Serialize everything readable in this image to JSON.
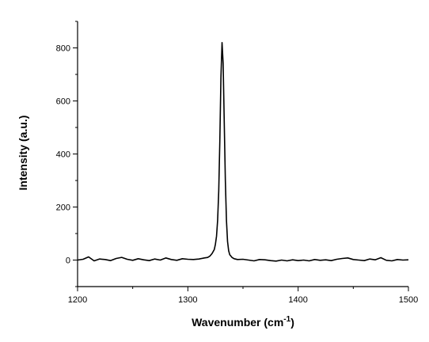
{
  "chart_data": {
    "type": "line",
    "title": "",
    "xlabel": "Wavenumber (cm",
    "xlabel_sup": "-1",
    "xlabel_suffix": ")",
    "ylabel": "Intensity (a.u.)",
    "xlim": [
      1200,
      1500
    ],
    "ylim": [
      -100,
      900
    ],
    "x_ticks": [
      1200,
      1300,
      1400,
      1500
    ],
    "y_ticks": [
      0,
      200,
      400,
      600,
      800
    ],
    "grid": false,
    "legend": "none",
    "color": "#000000",
    "series": [
      {
        "x": [
          1200,
          1205,
          1210,
          1215,
          1220,
          1225,
          1230,
          1235,
          1240,
          1245,
          1250,
          1255,
          1260,
          1265,
          1270,
          1275,
          1280,
          1285,
          1290,
          1295,
          1300,
          1305,
          1310,
          1315,
          1318,
          1320,
          1322,
          1324,
          1325,
          1326,
          1327,
          1328,
          1329,
          1330,
          1331,
          1332,
          1333,
          1334,
          1335,
          1336,
          1337,
          1338,
          1340,
          1342,
          1345,
          1350,
          1355,
          1360,
          1365,
          1370,
          1375,
          1380,
          1385,
          1390,
          1395,
          1400,
          1405,
          1410,
          1415,
          1420,
          1425,
          1430,
          1435,
          1440,
          1445,
          1450,
          1455,
          1460,
          1465,
          1470,
          1475,
          1480,
          1485,
          1490,
          1495,
          1500
        ],
        "y": [
          0,
          3,
          12,
          -3,
          4,
          2,
          -2,
          6,
          10,
          3,
          -1,
          5,
          1,
          -2,
          4,
          0,
          8,
          2,
          -1,
          5,
          3,
          2,
          4,
          8,
          10,
          15,
          25,
          40,
          60,
          90,
          150,
          260,
          450,
          690,
          820,
          740,
          520,
          300,
          150,
          70,
          35,
          20,
          10,
          5,
          2,
          3,
          0,
          -3,
          2,
          1,
          -2,
          -4,
          0,
          -3,
          1,
          -2,
          0,
          -3,
          2,
          -1,
          1,
          -2,
          3,
          6,
          8,
          2,
          0,
          -2,
          4,
          1,
          9,
          -1,
          -3,
          2,
          0,
          1
        ]
      }
    ]
  }
}
